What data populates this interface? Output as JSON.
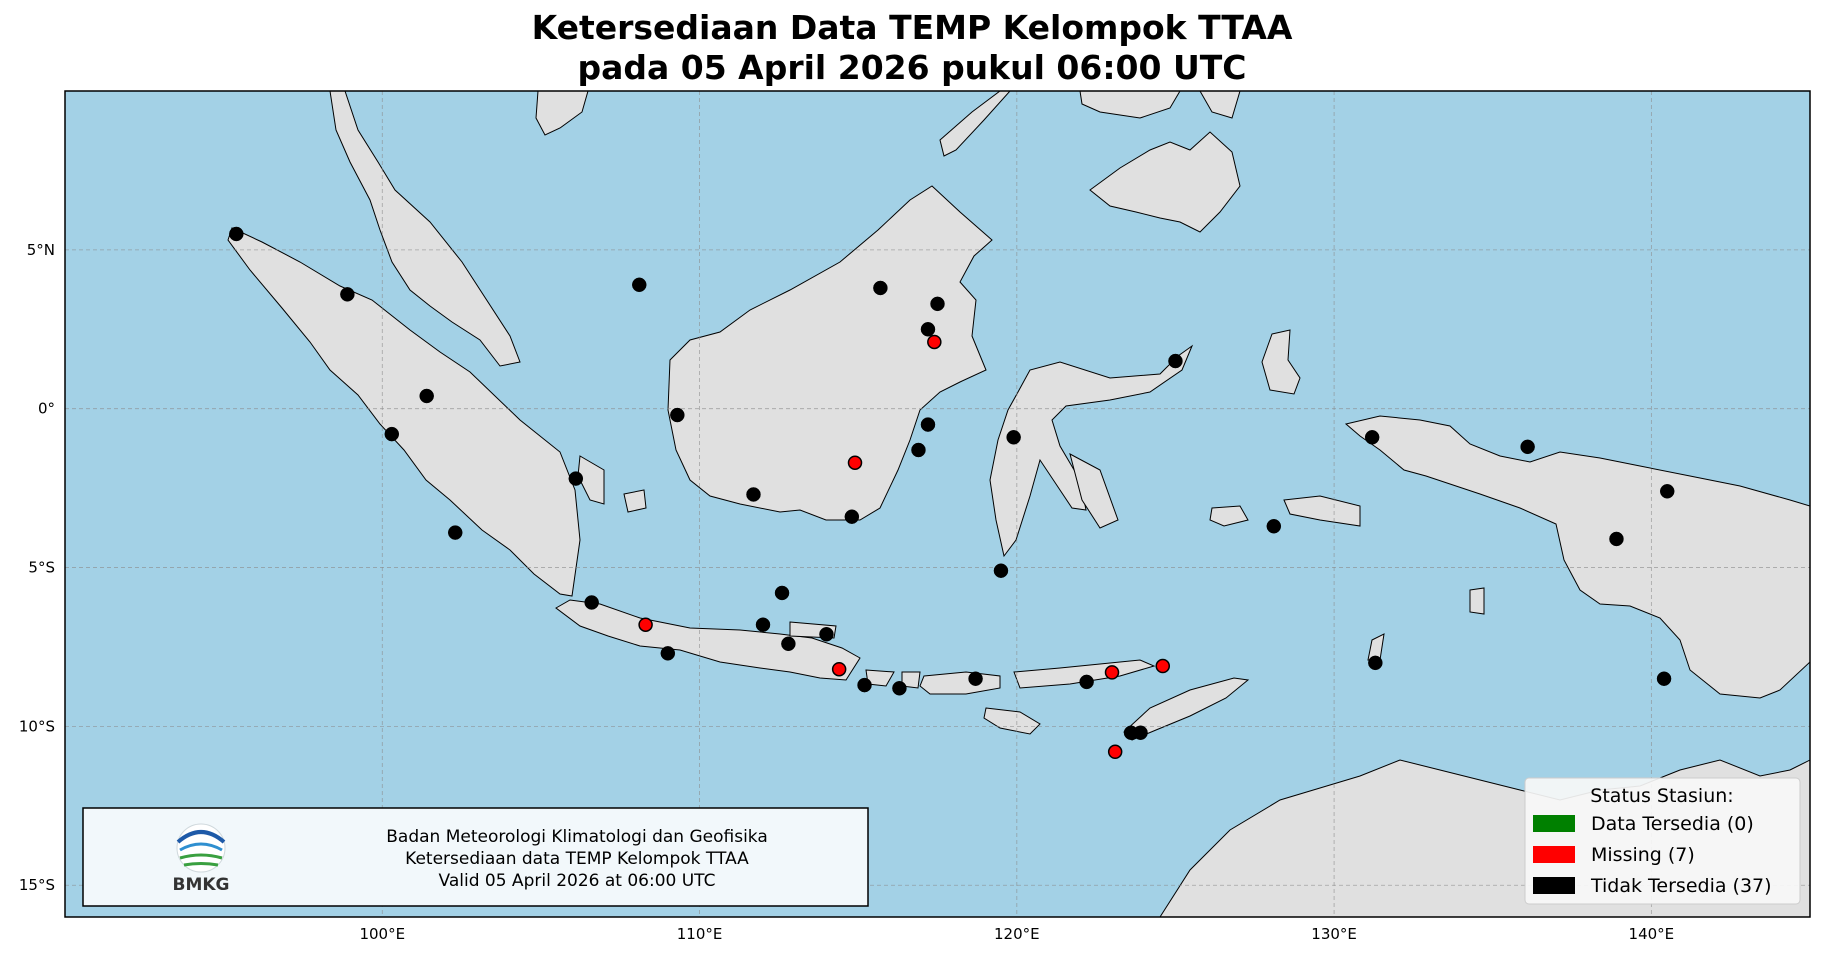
{
  "title": {
    "line1": "Ketersediaan Data TEMP Kelompok TTAA",
    "line2": "pada 05 April 2026 pukul 06:00 UTC"
  },
  "axes": {
    "lon_range": [
      90,
      145
    ],
    "lat_range": [
      -16,
      10
    ],
    "x_ticks": [
      {
        "value": 100,
        "label": "100°E"
      },
      {
        "value": 110,
        "label": "110°E"
      },
      {
        "value": 120,
        "label": "120°E"
      },
      {
        "value": 130,
        "label": "130°E"
      },
      {
        "value": 140,
        "label": "140°E"
      }
    ],
    "y_ticks": [
      {
        "value": 5,
        "label": "5°N"
      },
      {
        "value": 0,
        "label": "0°"
      },
      {
        "value": -5,
        "label": "5°S"
      },
      {
        "value": -10,
        "label": "10°S"
      },
      {
        "value": -15,
        "label": "15°S"
      }
    ],
    "grid": true
  },
  "colors": {
    "ocean": "#a3d1e6",
    "land": "#e0e0e0",
    "available": "#008000",
    "missing": "#ff0000",
    "unavailable": "#000000"
  },
  "info_box": {
    "logo_text": "BMKG",
    "line1": "Badan Meteorologi Klimatologi dan Geofisika",
    "line2": "Ketersediaan data TEMP Kelompok TTAA",
    "line3": "Valid 05 April 2026 at 06:00 UTC"
  },
  "legend": {
    "title": "Status Stasiun:",
    "placement": "bottom-right",
    "items": [
      {
        "label": "Data Tersedia (0)",
        "color": "#008000"
      },
      {
        "label": "Missing (7)",
        "color": "#ff0000"
      },
      {
        "label": "Tidak Tersedia (37)",
        "color": "#000000"
      }
    ]
  },
  "stations": [
    {
      "lon": 95.4,
      "lat": 5.5,
      "status": "unavailable"
    },
    {
      "lon": 98.9,
      "lat": 3.6,
      "status": "unavailable"
    },
    {
      "lon": 101.4,
      "lat": 0.4,
      "status": "unavailable"
    },
    {
      "lon": 100.3,
      "lat": -0.8,
      "status": "unavailable"
    },
    {
      "lon": 102.3,
      "lat": -3.9,
      "status": "unavailable"
    },
    {
      "lon": 106.1,
      "lat": -2.2,
      "status": "unavailable"
    },
    {
      "lon": 106.6,
      "lat": -6.1,
      "status": "unavailable"
    },
    {
      "lon": 108.3,
      "lat": -6.8,
      "status": "missing"
    },
    {
      "lon": 109.0,
      "lat": -7.7,
      "status": "unavailable"
    },
    {
      "lon": 108.1,
      "lat": 3.9,
      "status": "unavailable"
    },
    {
      "lon": 109.3,
      "lat": -0.2,
      "status": "unavailable"
    },
    {
      "lon": 111.7,
      "lat": -2.7,
      "status": "unavailable"
    },
    {
      "lon": 112.6,
      "lat": -5.8,
      "status": "unavailable"
    },
    {
      "lon": 112.0,
      "lat": -6.8,
      "status": "unavailable"
    },
    {
      "lon": 112.8,
      "lat": -7.4,
      "status": "unavailable"
    },
    {
      "lon": 114.0,
      "lat": -7.1,
      "status": "unavailable"
    },
    {
      "lon": 114.4,
      "lat": -8.2,
      "status": "missing"
    },
    {
      "lon": 115.2,
      "lat": -8.7,
      "status": "unavailable"
    },
    {
      "lon": 114.8,
      "lat": -3.4,
      "status": "unavailable"
    },
    {
      "lon": 114.9,
      "lat": -1.7,
      "status": "missing"
    },
    {
      "lon": 115.7,
      "lat": 3.8,
      "status": "unavailable"
    },
    {
      "lon": 117.5,
      "lat": 3.3,
      "status": "unavailable"
    },
    {
      "lon": 117.2,
      "lat": 2.5,
      "status": "unavailable"
    },
    {
      "lon": 117.4,
      "lat": 2.1,
      "status": "missing"
    },
    {
      "lon": 117.2,
      "lat": -0.5,
      "status": "unavailable"
    },
    {
      "lon": 116.9,
      "lat": -1.3,
      "status": "unavailable"
    },
    {
      "lon": 116.3,
      "lat": -8.8,
      "status": "unavailable"
    },
    {
      "lon": 118.7,
      "lat": -8.5,
      "status": "unavailable"
    },
    {
      "lon": 119.5,
      "lat": -5.1,
      "status": "unavailable"
    },
    {
      "lon": 119.9,
      "lat": -0.9,
      "status": "unavailable"
    },
    {
      "lon": 122.2,
      "lat": -8.6,
      "status": "unavailable"
    },
    {
      "lon": 123.0,
      "lat": -8.3,
      "status": "missing"
    },
    {
      "lon": 124.6,
      "lat": -8.1,
      "status": "missing"
    },
    {
      "lon": 123.6,
      "lat": -10.2,
      "status": "unavailable"
    },
    {
      "lon": 123.9,
      "lat": -10.2,
      "status": "unavailable"
    },
    {
      "lon": 123.1,
      "lat": -10.8,
      "status": "missing"
    },
    {
      "lon": 125.0,
      "lat": 1.5,
      "status": "unavailable"
    },
    {
      "lon": 128.1,
      "lat": -3.7,
      "status": "unavailable"
    },
    {
      "lon": 131.2,
      "lat": -0.9,
      "status": "unavailable"
    },
    {
      "lon": 131.3,
      "lat": -8.0,
      "status": "unavailable"
    },
    {
      "lon": 136.1,
      "lat": -1.2,
      "status": "unavailable"
    },
    {
      "lon": 140.5,
      "lat": -2.6,
      "status": "unavailable"
    },
    {
      "lon": 138.9,
      "lat": -4.1,
      "status": "unavailable"
    },
    {
      "lon": 140.4,
      "lat": -8.5,
      "status": "unavailable"
    }
  ]
}
